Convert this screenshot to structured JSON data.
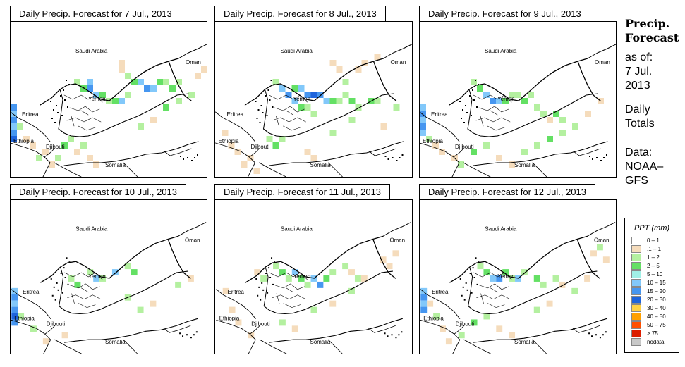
{
  "panels": [
    {
      "title": "Daily Precip. Forecast for  7 Jul., 2013"
    },
    {
      "title": "Daily Precip. Forecast for  8 Jul., 2013"
    },
    {
      "title": "Daily Precip. Forecast for  9 Jul., 2013"
    },
    {
      "title": "Daily Precip. Forecast for  10 Jul., 2013"
    },
    {
      "title": "Daily Precip. Forecast for  11 Jul., 2013"
    },
    {
      "title": "Daily Precip. Forecast for  12 Jul., 2013"
    }
  ],
  "country_labels": {
    "saudi_arabia": "Saudi Arabia",
    "oman": "Oman",
    "yemen": "Yemen",
    "eritrea": "Eritrea",
    "ethiopia": "Ethiopia",
    "djibouti": "Djibouti",
    "somalia": "Somalia"
  },
  "sidebar": {
    "title_line1": "Precip.",
    "title_line2": "Forecast",
    "asof_line1": "as of:",
    "asof_line2": "7 Jul.",
    "asof_line3": "2013",
    "totals_line1": "Daily",
    "totals_line2": "Totals",
    "data_line1": "Data:",
    "data_line2": "NOAA–",
    "data_line3": "GFS"
  },
  "legend": {
    "title": "PPT (mm)",
    "items": [
      {
        "label": "0 – 1",
        "color": "#ffffff"
      },
      {
        "label": ".1 – 1",
        "color": "#f5dcbc"
      },
      {
        "label": "1 – 2",
        "color": "#b4f0a0"
      },
      {
        "label": "2 – 5",
        "color": "#64e064"
      },
      {
        "label": "5 – 10",
        "color": "#a0f0e6"
      },
      {
        "label": "10 – 15",
        "color": "#82c8fa"
      },
      {
        "label": "15 – 20",
        "color": "#4696f0"
      },
      {
        "label": "20 – 30",
        "color": "#1e64dc"
      },
      {
        "label": "30 – 40",
        "color": "#ffd246"
      },
      {
        "label": "40 – 50",
        "color": "#ffa000"
      },
      {
        "label": "50 – 75",
        "color": "#ff5000"
      },
      {
        "label": "> 75",
        "color": "#dc1e00"
      },
      {
        "label": "nodata",
        "color": "#c8c8c8"
      }
    ]
  }
}
